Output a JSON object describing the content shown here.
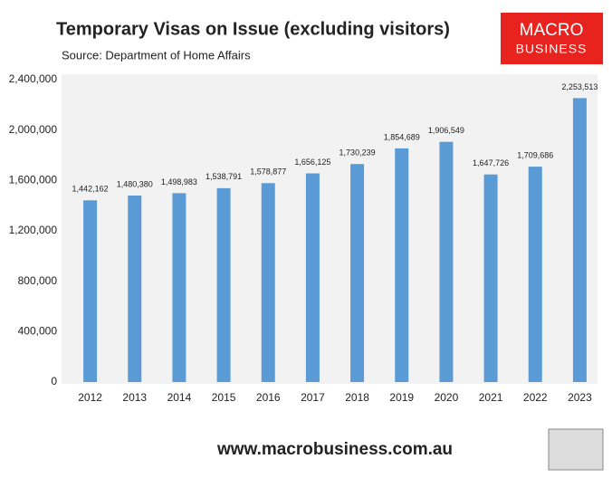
{
  "chart_data": {
    "type": "bar",
    "title": "Temporary Visas on Issue (excluding visitors)",
    "subtitle": "Source: Department of Home Affairs",
    "categories": [
      "2012",
      "2013",
      "2014",
      "2015",
      "2016",
      "2017",
      "2018",
      "2019",
      "2020",
      "2021",
      "2022",
      "2023"
    ],
    "values": [
      1442162,
      1480380,
      1498983,
      1538791,
      1578877,
      1656125,
      1730239,
      1854689,
      1906549,
      1647726,
      1709686,
      2253513
    ],
    "value_labels": [
      "1,442,162",
      "1,480,380",
      "1,498,983",
      "1,538,791",
      "1,578,877",
      "1,656,125",
      "1,730,239",
      "1,854,689",
      "1,906,549",
      "1,647,726",
      "1,709,686",
      "2,253,513"
    ],
    "color": "#5b9bd5",
    "ylim": [
      0,
      2400000
    ],
    "yticks": [
      0,
      {
        "value": 400000,
        "label": "400,000"
      },
      {
        "value": 800000,
        "label": "800,000"
      },
      {
        "value": 1200000,
        "label": "1,200,000"
      },
      {
        "value": 1600000,
        "label": "1,600,000"
      },
      {
        "value": 2000000,
        "label": "2,000,000"
      },
      {
        "value": 2400000,
        "label": "2,400,000"
      }
    ],
    "grid": false
  },
  "logo": {
    "line1": "MACRO",
    "line2": "BUSINESS"
  },
  "footer": "www.macrobusiness.com.au"
}
